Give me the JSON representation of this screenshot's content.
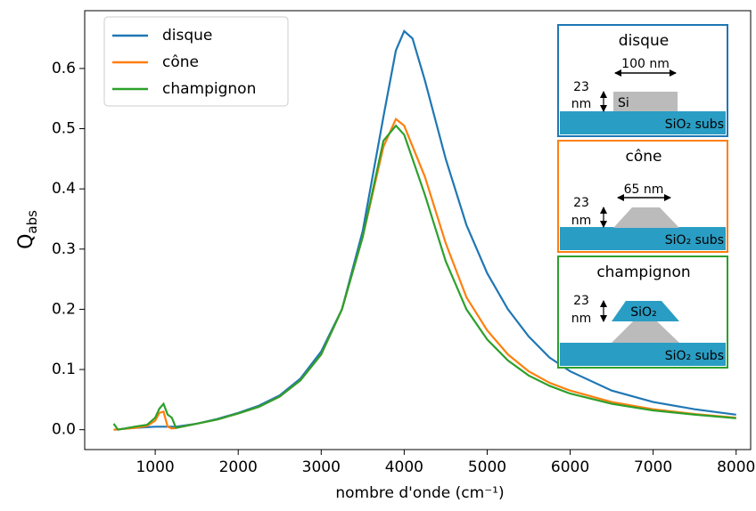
{
  "chart_data": {
    "type": "line",
    "xlabel": "nombre d'onde (cm⁻¹)",
    "ylabel": "Q",
    "ylabel_sub": "abs",
    "xlim": [
      150,
      8175
    ],
    "ylim": [
      -0.033,
      0.696
    ],
    "xticks": [
      1000,
      2000,
      3000,
      4000,
      5000,
      6000,
      7000,
      8000
    ],
    "yticks": [
      {
        "value": 0,
        "label": "0.0"
      },
      0.1,
      0.2,
      0.3,
      0.4,
      0.5,
      0.6
    ],
    "legend": "upper left",
    "series": [
      {
        "name": "disque",
        "color": "#1f77b4",
        "x": [
          500,
          750,
          1000,
          1250,
          1500,
          1750,
          2000,
          2250,
          2500,
          2750,
          3000,
          3250,
          3500,
          3750,
          3900,
          4000,
          4100,
          4250,
          4500,
          4750,
          5000,
          5250,
          5500,
          5750,
          6000,
          6500,
          7000,
          7500,
          8000
        ],
        "values": [
          0.0,
          0.003,
          0.005,
          0.005,
          0.01,
          0.018,
          0.028,
          0.04,
          0.057,
          0.085,
          0.13,
          0.2,
          0.33,
          0.52,
          0.63,
          0.662,
          0.65,
          0.58,
          0.45,
          0.34,
          0.26,
          0.2,
          0.155,
          0.12,
          0.097,
          0.065,
          0.046,
          0.034,
          0.025
        ]
      },
      {
        "name": "cône",
        "color": "#ff7f0e",
        "x": [
          500,
          750,
          900,
          1000,
          1050,
          1100,
          1150,
          1200,
          1250,
          1500,
          1750,
          2000,
          2250,
          2500,
          2750,
          3000,
          3250,
          3500,
          3750,
          3900,
          4000,
          4250,
          4500,
          4750,
          5000,
          5250,
          5500,
          5750,
          6000,
          6500,
          7000,
          7500,
          8000
        ],
        "values": [
          0.0,
          0.003,
          0.006,
          0.015,
          0.028,
          0.03,
          0.005,
          0.002,
          0.003,
          0.01,
          0.017,
          0.027,
          0.038,
          0.055,
          0.082,
          0.125,
          0.2,
          0.32,
          0.47,
          0.516,
          0.505,
          0.42,
          0.31,
          0.22,
          0.165,
          0.125,
          0.097,
          0.078,
          0.065,
          0.046,
          0.034,
          0.026,
          0.02
        ]
      },
      {
        "name": "champignon",
        "color": "#2ca02c",
        "x": [
          500,
          550,
          750,
          900,
          1000,
          1050,
          1100,
          1150,
          1200,
          1250,
          1500,
          1750,
          2000,
          2250,
          2500,
          2750,
          3000,
          3250,
          3500,
          3750,
          3900,
          4000,
          4250,
          4500,
          4750,
          5000,
          5250,
          5500,
          5750,
          6000,
          6500,
          7000,
          7500,
          8000
        ],
        "values": [
          0.01,
          0.0,
          0.005,
          0.008,
          0.02,
          0.035,
          0.043,
          0.025,
          0.02,
          0.003,
          0.01,
          0.017,
          0.027,
          0.038,
          0.055,
          0.082,
          0.125,
          0.2,
          0.32,
          0.48,
          0.505,
          0.49,
          0.39,
          0.28,
          0.2,
          0.15,
          0.115,
          0.09,
          0.073,
          0.06,
          0.043,
          0.032,
          0.025,
          0.019
        ]
      }
    ],
    "insets": [
      {
        "title": "disque",
        "width_label": "100 nm",
        "height_label": [
          "23",
          "nm"
        ],
        "material": "Si",
        "substrate": "SiO₂ subs"
      },
      {
        "title": "cône",
        "width_label": "65 nm",
        "height_label": [
          "23",
          "nm"
        ],
        "substrate": "SiO₂ subs"
      },
      {
        "title": "champignon",
        "height_label": [
          "23",
          "nm"
        ],
        "material": "SiO₂",
        "substrate": "SiO₂ subs"
      }
    ]
  }
}
